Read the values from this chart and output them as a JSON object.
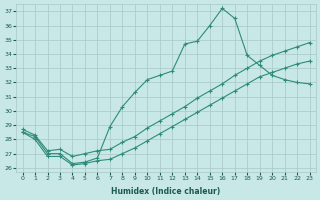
{
  "xlabel": "Humidex (Indice chaleur)",
  "line_color": "#2e8b7a",
  "bg_color": "#c8e8e8",
  "grid_color": "#a8c8c8",
  "ylim_min": 26,
  "ylim_max": 37,
  "xlim_min": 0,
  "xlim_max": 23,
  "yticks": [
    26,
    27,
    28,
    29,
    30,
    31,
    32,
    33,
    34,
    35,
    36,
    37
  ],
  "xticks": [
    0,
    1,
    2,
    3,
    4,
    5,
    6,
    7,
    8,
    9,
    10,
    11,
    12,
    13,
    14,
    15,
    16,
    17,
    18,
    19,
    20,
    21,
    22,
    23
  ],
  "main_x": [
    0,
    1,
    2,
    3,
    4,
    5,
    6,
    7,
    8,
    9,
    10,
    11,
    12,
    13,
    14,
    15,
    16,
    17,
    18,
    19,
    20,
    21,
    22,
    23
  ],
  "main_y": [
    28.5,
    28.2,
    27.0,
    27.0,
    26.3,
    26.4,
    26.7,
    28.9,
    30.3,
    31.3,
    32.2,
    32.5,
    32.8,
    34.7,
    34.9,
    36.0,
    37.2,
    36.5,
    33.9,
    33.2,
    32.5,
    32.2,
    32.0,
    31.9
  ],
  "diag_upper_x": [
    0,
    1,
    2,
    3,
    4,
    5,
    6,
    7,
    8,
    9,
    10,
    11,
    12,
    13,
    14,
    15,
    16,
    17,
    18,
    19,
    20,
    21,
    22,
    23
  ],
  "diag_upper_y": [
    28.7,
    28.3,
    27.2,
    27.3,
    26.8,
    27.0,
    27.2,
    27.3,
    27.8,
    28.2,
    28.8,
    29.3,
    29.8,
    30.3,
    30.9,
    31.4,
    31.9,
    32.5,
    33.0,
    33.5,
    33.9,
    34.2,
    34.5,
    34.8
  ],
  "diag_lower_x": [
    0,
    1,
    2,
    3,
    4,
    5,
    6,
    7,
    8,
    9,
    10,
    11,
    12,
    13,
    14,
    15,
    16,
    17,
    18,
    19,
    20,
    21,
    22,
    23
  ],
  "diag_lower_y": [
    28.5,
    28.0,
    26.8,
    26.8,
    26.2,
    26.3,
    26.5,
    26.6,
    27.0,
    27.4,
    27.9,
    28.4,
    28.9,
    29.4,
    29.9,
    30.4,
    30.9,
    31.4,
    31.9,
    32.4,
    32.7,
    33.0,
    33.3,
    33.5
  ]
}
